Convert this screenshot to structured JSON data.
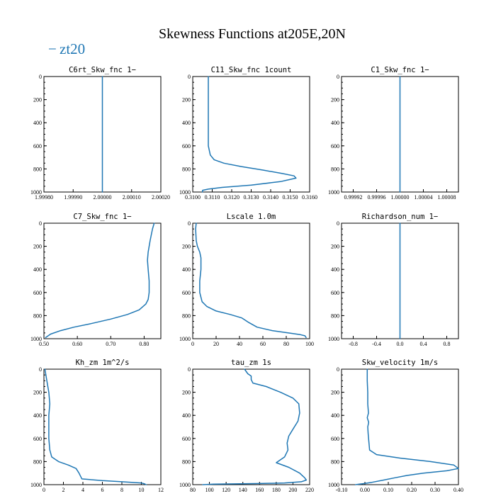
{
  "figure": {
    "title": "Skewness Functions at205E,20N",
    "legend": {
      "label": "zt20",
      "color": "#1f77b4",
      "symbol": "−"
    }
  },
  "chart_data": [
    {
      "type": "line",
      "title": "C6rt_Skw_fnc   1−",
      "xlim": [
        1.9998,
        2.0002
      ],
      "ylim": [
        1000,
        0
      ],
      "xticks": [
        1.9998,
        1.9999,
        2.0,
        2.0001,
        2.0002
      ],
      "xtick_labels": [
        "1.99980",
        "1.99990",
        "2.00000",
        "2.00010",
        "2.00020"
      ],
      "yticks": [
        0,
        200,
        400,
        600,
        800,
        1000
      ],
      "series": [
        {
          "name": "zt20",
          "x": [
            2.0,
            2.0
          ],
          "y": [
            0,
            1000
          ]
        }
      ]
    },
    {
      "type": "line",
      "title": "C11_Skw_fnc   1count",
      "xlim": [
        0.31,
        0.316
      ],
      "ylim": [
        1000,
        0
      ],
      "xticks": [
        0.31,
        0.311,
        0.312,
        0.313,
        0.314,
        0.315,
        0.316
      ],
      "xtick_labels": [
        "0.3100",
        "0.3110",
        "0.3120",
        "0.3130",
        "0.3140",
        "0.3150",
        "0.3160"
      ],
      "yticks": [
        0,
        200,
        400,
        600,
        800,
        1000
      ],
      "series": [
        {
          "name": "zt20",
          "x": [
            0.3108,
            0.3108,
            0.3108,
            0.3109,
            0.3111,
            0.3116,
            0.3125,
            0.3136,
            0.3146,
            0.3152,
            0.3153,
            0.3145,
            0.313,
            0.3115,
            0.3108,
            0.3105,
            0.3105
          ],
          "y": [
            0,
            200,
            600,
            680,
            720,
            750,
            780,
            810,
            840,
            860,
            880,
            910,
            940,
            960,
            975,
            985,
            1000
          ]
        }
      ]
    },
    {
      "type": "line",
      "title": "C1_Skw_fnc   1−",
      "xlim": [
        0.9999,
        1.0001
      ],
      "ylim": [
        1000,
        0
      ],
      "xticks": [
        0.99992,
        0.99996,
        1.0,
        1.00004,
        1.00008
      ],
      "xtick_labels": [
        "0.99992",
        "0.99996",
        "1.00000",
        "1.00004",
        "1.00008"
      ],
      "yticks": [
        0,
        200,
        400,
        600,
        800,
        1000
      ],
      "series": [
        {
          "name": "zt20",
          "x": [
            1.0,
            1.0
          ],
          "y": [
            0,
            1000
          ]
        }
      ]
    },
    {
      "type": "line",
      "title": "C7_Skw_fnc   1−",
      "xlim": [
        0.5,
        0.85
      ],
      "ylim": [
        1000,
        0
      ],
      "xticks": [
        0.5,
        0.6,
        0.7,
        0.8
      ],
      "xtick_labels": [
        "0.50",
        "0.60",
        "0.70",
        "0.80"
      ],
      "yticks": [
        0,
        200,
        400,
        600,
        800,
        1000
      ],
      "series": [
        {
          "name": "zt20",
          "x": [
            0.83,
            0.825,
            0.818,
            0.812,
            0.81,
            0.812,
            0.815,
            0.815,
            0.812,
            0.805,
            0.785,
            0.75,
            0.7,
            0.64,
            0.59,
            0.55,
            0.52,
            0.505
          ],
          "y": [
            0,
            50,
            150,
            250,
            320,
            400,
            500,
            600,
            660,
            700,
            750,
            790,
            830,
            870,
            900,
            930,
            960,
            990
          ]
        }
      ]
    },
    {
      "type": "line",
      "title": "Lscale   1.0m",
      "xlim": [
        0,
        100
      ],
      "ylim": [
        1000,
        0
      ],
      "xticks": [
        0,
        20,
        40,
        60,
        80,
        100
      ],
      "xtick_labels": [
        "0",
        "20",
        "40",
        "60",
        "80",
        "100"
      ],
      "yticks": [
        0,
        200,
        400,
        600,
        800,
        1000
      ],
      "series": [
        {
          "name": "zt20",
          "x": [
            3,
            2.5,
            3,
            4,
            6,
            7,
            7,
            6,
            6,
            8,
            12,
            20,
            32,
            42,
            48,
            55,
            68,
            82,
            92,
            96,
            97
          ],
          "y": [
            0,
            50,
            150,
            200,
            250,
            300,
            400,
            500,
            600,
            680,
            720,
            760,
            790,
            820,
            860,
            900,
            930,
            950,
            965,
            975,
            990
          ]
        }
      ]
    },
    {
      "type": "line",
      "title": "Richardson_num   1−",
      "xlim": [
        -1.0,
        1.0
      ],
      "ylim": [
        1000,
        0
      ],
      "xticks": [
        -0.8,
        -0.4,
        0.0,
        0.4,
        0.8
      ],
      "xtick_labels": [
        "-0.8",
        "-0.4",
        "0.0",
        "0.4",
        "0.8"
      ],
      "yticks": [
        0,
        200,
        400,
        600,
        800,
        1000
      ],
      "series": [
        {
          "name": "zt20",
          "x": [
            0.0,
            0.0
          ],
          "y": [
            0,
            1000
          ]
        }
      ]
    },
    {
      "type": "line",
      "title": "Kh_zm   1m^2/s",
      "xlim": [
        0,
        12
      ],
      "ylim": [
        1000,
        0
      ],
      "xticks": [
        0,
        2,
        4,
        6,
        8,
        10,
        12
      ],
      "xtick_labels": [
        "0",
        "2",
        "4",
        "6",
        "8",
        "10",
        "12"
      ],
      "yticks": [
        0,
        200,
        400,
        600,
        800,
        1000
      ],
      "series": [
        {
          "name": "zt20",
          "x": [
            0.1,
            0.3,
            0.5,
            0.6,
            0.5,
            0.5,
            0.5,
            0.6,
            0.8,
            1.5,
            2.5,
            3.3,
            3.6,
            3.9,
            6,
            8,
            10,
            10.3,
            10.5
          ],
          "y": [
            0,
            100,
            200,
            300,
            400,
            500,
            600,
            700,
            760,
            800,
            830,
            860,
            900,
            950,
            965,
            975,
            985,
            992,
            1000
          ]
        }
      ]
    },
    {
      "type": "line",
      "title": "tau_zm   1s",
      "xlim": [
        80,
        220
      ],
      "ylim": [
        1000,
        0
      ],
      "xticks": [
        80,
        100,
        120,
        140,
        160,
        180,
        200,
        220
      ],
      "xtick_labels": [
        "80",
        "100",
        "120",
        "140",
        "160",
        "180",
        "200",
        "220"
      ],
      "yticks": [
        0,
        200,
        400,
        600,
        800,
        1000
      ],
      "series": [
        {
          "name": "zt20",
          "x": [
            142,
            146,
            150,
            150,
            152,
            168,
            185,
            200,
            207,
            208,
            206,
            200,
            195,
            193,
            194,
            190,
            182,
            180,
            195,
            208,
            214,
            216,
            210,
            190,
            160,
            130,
            105,
            92
          ],
          "y": [
            0,
            40,
            60,
            90,
            120,
            150,
            200,
            250,
            300,
            380,
            450,
            520,
            580,
            640,
            700,
            760,
            800,
            810,
            850,
            900,
            940,
            960,
            975,
            985,
            990,
            993,
            996,
            1000
          ]
        }
      ]
    },
    {
      "type": "line",
      "title": "Skw_velocity   1m/s",
      "xlim": [
        -0.1,
        0.4
      ],
      "ylim": [
        1000,
        0
      ],
      "xticks": [
        -0.1,
        0.0,
        0.1,
        0.2,
        0.3,
        0.4
      ],
      "xtick_labels": [
        "-0.10",
        "0.00",
        "0.10",
        "0.20",
        "0.30",
        "0.40"
      ],
      "yticks": [
        0,
        200,
        400,
        600,
        800,
        1000
      ],
      "series": [
        {
          "name": "zt20",
          "x": [
            0.01,
            0.01,
            0.012,
            0.012,
            0.015,
            0.01,
            0.016,
            0.012,
            0.014,
            0.02,
            0.05,
            0.15,
            0.28,
            0.38,
            0.4,
            0.35,
            0.25,
            0.18,
            0.13,
            0.08,
            0.03,
            -0.01,
            -0.04
          ],
          "y": [
            0,
            100,
            200,
            300,
            380,
            420,
            460,
            500,
            560,
            700,
            740,
            770,
            800,
            830,
            860,
            880,
            900,
            920,
            940,
            960,
            980,
            992,
            1000
          ]
        }
      ]
    }
  ]
}
